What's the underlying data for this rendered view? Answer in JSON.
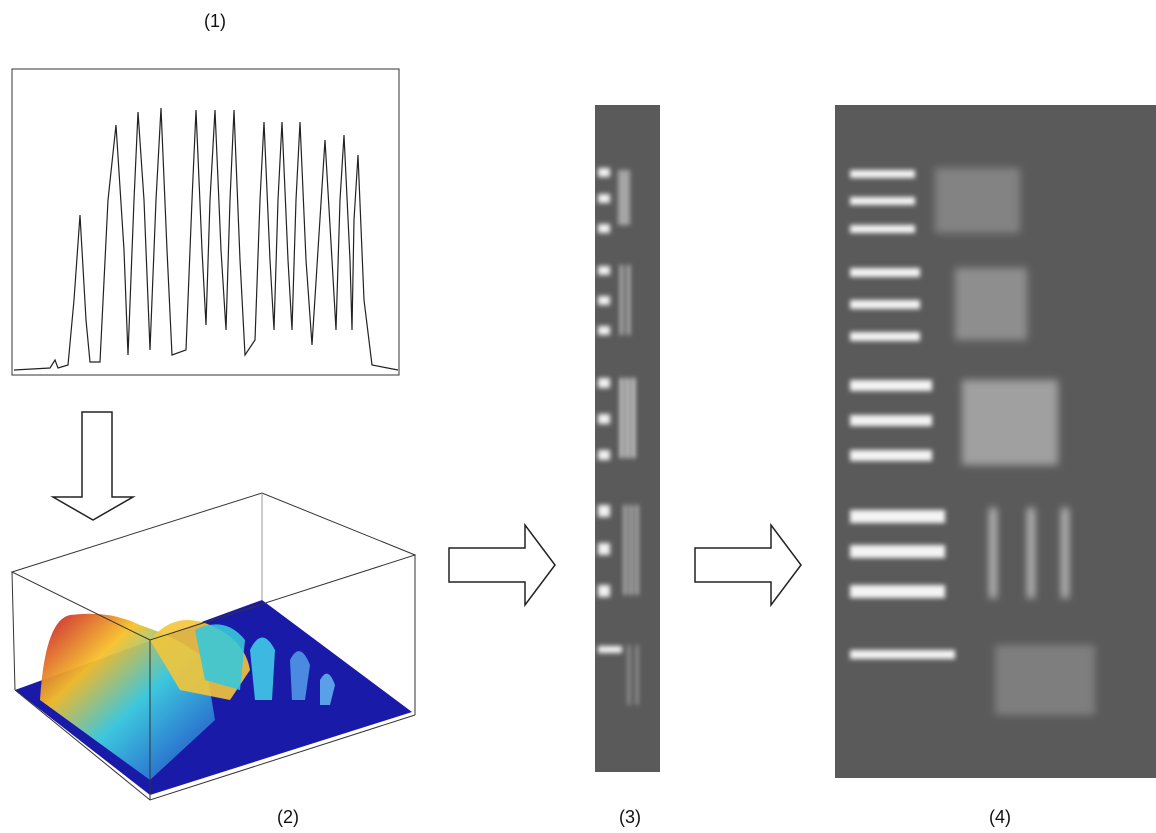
{
  "panels": [
    {
      "label": "(1)"
    },
    {
      "label": "(2)"
    },
    {
      "label": "(3)"
    },
    {
      "label": "(4)"
    }
  ]
}
